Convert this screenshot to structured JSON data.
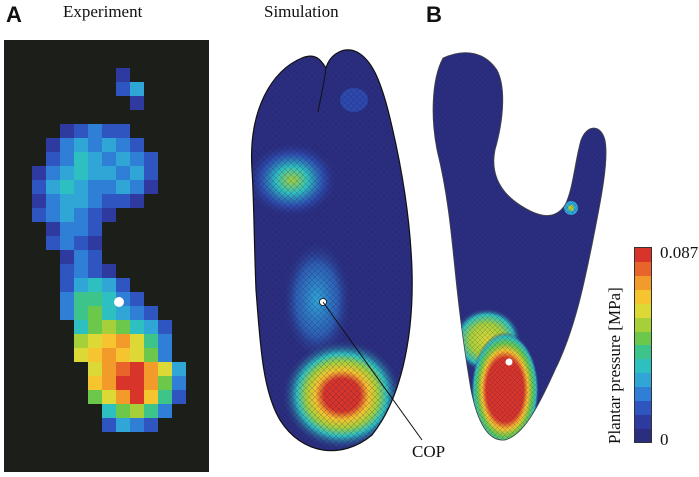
{
  "panels": {
    "a_letter": "A",
    "b_letter": "B",
    "experiment_heading": "Experiment",
    "simulation_heading": "Simulation"
  },
  "annotations": {
    "cop_label": "COP"
  },
  "colorbar": {
    "title": "Plantar pressure [MPa]",
    "max_label": "0.087",
    "min_label": "0",
    "colors": [
      "#2b2d7e",
      "#2f3aa0",
      "#2f56c0",
      "#2f7fd6",
      "#2fa6d6",
      "#2ec0c0",
      "#3cc48a",
      "#6cc84a",
      "#a6d03a",
      "#dcd836",
      "#f6c42e",
      "#f29a2a",
      "#e8642a",
      "#d8342a"
    ]
  },
  "colors": {
    "background_dark": "#1c1e1a",
    "foot_base": "#2b2e80",
    "high_pressure": "#d8342a"
  }
}
